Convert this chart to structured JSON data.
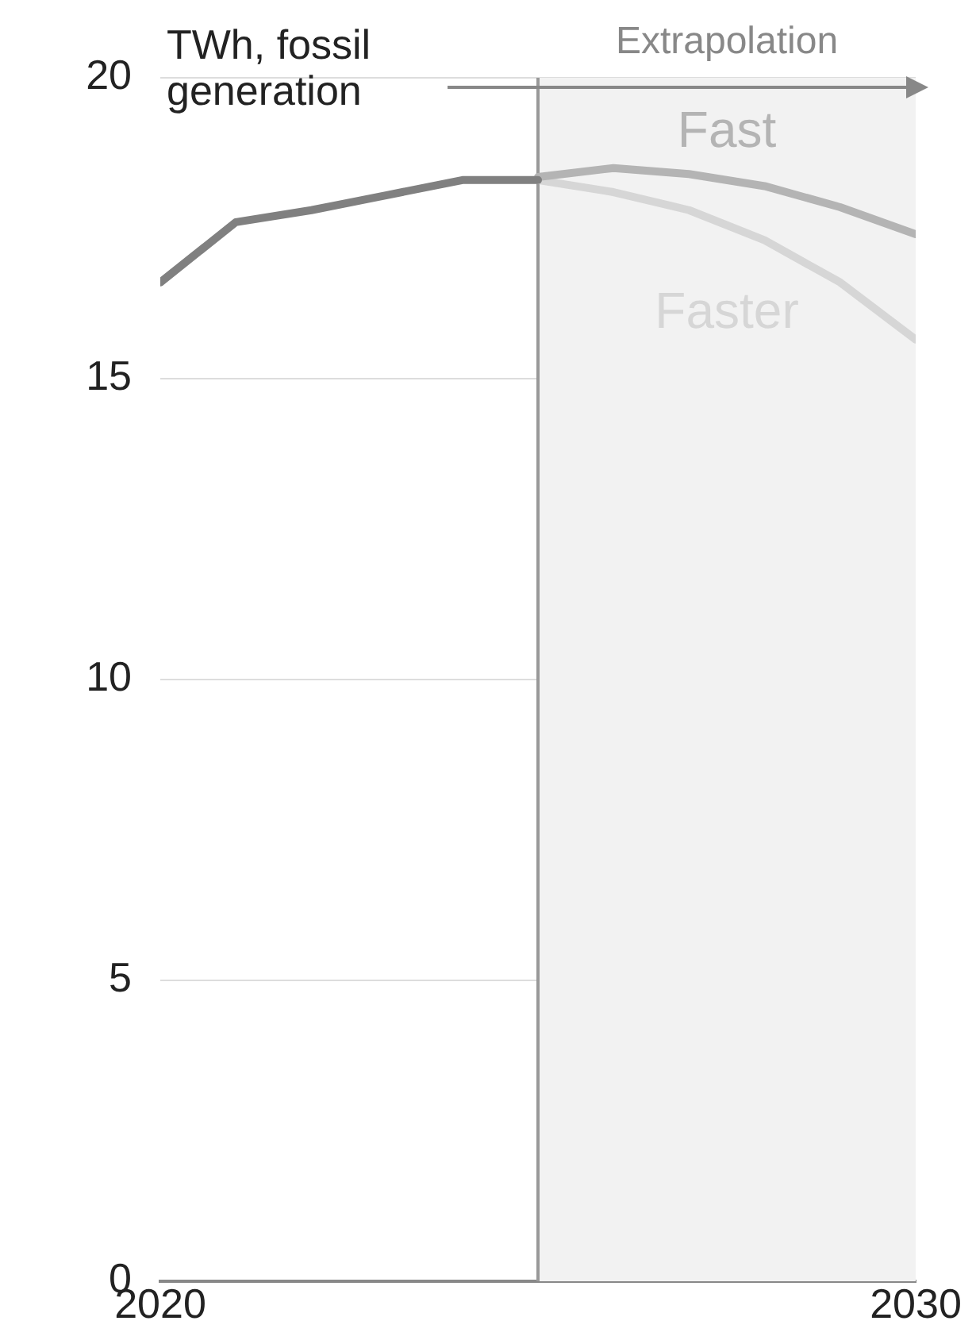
{
  "chart_data": {
    "type": "line",
    "ylabel": "TWh, fossil generation",
    "xlim": [
      2020,
      2030
    ],
    "xticks": [
      2020,
      2030
    ],
    "ylim": [
      0,
      20
    ],
    "yticks": [
      0,
      5,
      10,
      15,
      20
    ],
    "grid": "y",
    "legend": false,
    "marker": "none",
    "line_style": "solid",
    "series": [
      {
        "color": "#808080",
        "x": [
          2020,
          2021,
          2022,
          2023,
          2024,
          2025
        ],
        "values": [
          16.6,
          17.6,
          17.8,
          18.05,
          18.3,
          18.3
        ]
      },
      {
        "name": "Fast",
        "color": "#b4b4b4",
        "x": [
          2025,
          2026,
          2027,
          2028,
          2029,
          2030
        ],
        "values": [
          18.35,
          18.5,
          18.4,
          18.2,
          17.85,
          17.4
        ]
      },
      {
        "name": "Faster",
        "color": "#d6d6d6",
        "x": [
          2025,
          2026,
          2027,
          2028,
          2029,
          2030
        ],
        "values": [
          18.3,
          18.1,
          17.8,
          17.3,
          16.6,
          15.65
        ]
      }
    ],
    "ref_lines": [
      {
        "axis": "x",
        "value": 2025,
        "color": "#999999"
      }
    ],
    "bands": [
      {
        "axis": "x",
        "from": 2025,
        "to": 2030,
        "label": "Extrapolation",
        "color": "#f2f2f2"
      }
    ]
  }
}
